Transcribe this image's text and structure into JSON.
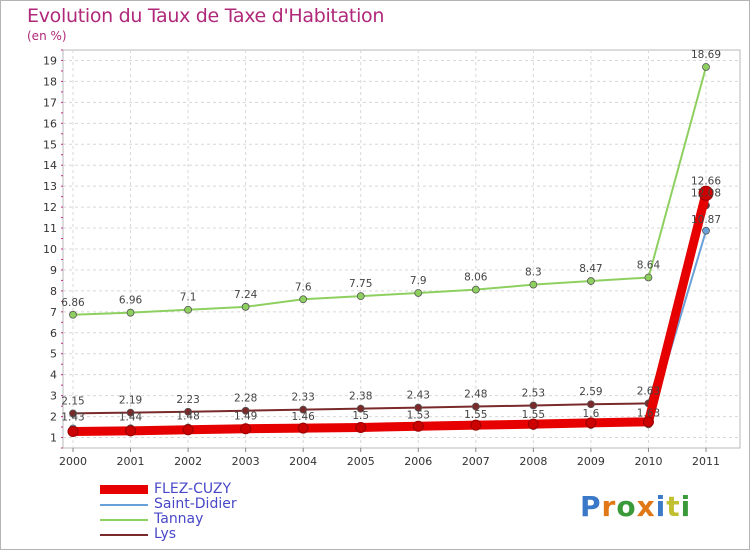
{
  "chart_data": {
    "type": "line",
    "title": "Evolution du Taux de Taxe d'Habitation",
    "subtitle": "(en %)",
    "xlabel": "",
    "ylabel": "",
    "categories": [
      "2000",
      "2001",
      "2002",
      "2003",
      "2004",
      "2005",
      "2006",
      "2007",
      "2008",
      "2009",
      "2010",
      "2011"
    ],
    "ylim": [
      0.5,
      19.5
    ],
    "yticks": [
      "1",
      "2",
      "3",
      "4",
      "5",
      "6",
      "7",
      "8",
      "9",
      "10",
      "11",
      "12",
      "13",
      "14",
      "15",
      "16",
      "17",
      "18",
      "19"
    ],
    "series": [
      {
        "name": "FLEZ-CUZY",
        "color": "#e60000",
        "values": [
          1.29,
          1.32,
          1.37,
          1.42,
          1.45,
          1.48,
          1.54,
          1.59,
          1.64,
          1.7,
          1.75,
          12.66
        ],
        "labels": [
          "",
          "",
          "",
          "",
          "",
          "",
          "",
          "",
          "",
          "",
          "",
          "12.66"
        ]
      },
      {
        "name": "Saint-Didier",
        "color": "#6aa0d8",
        "values": [
          1.43,
          1.44,
          1.48,
          1.49,
          1.46,
          1.5,
          1.53,
          1.55,
          1.55,
          1.6,
          1.63,
          10.87
        ],
        "labels": [
          "1.43",
          "1.44",
          "1.48",
          "1.49",
          "1.46",
          "1.5",
          "1.53",
          "1.55",
          "1.55",
          "1.6",
          "1.63",
          "10.87"
        ]
      },
      {
        "name": "Tannay",
        "color": "#8ed060",
        "values": [
          6.86,
          6.96,
          7.1,
          7.24,
          7.6,
          7.75,
          7.9,
          8.06,
          8.3,
          8.47,
          8.64,
          18.69
        ],
        "labels": [
          "6.86",
          "6.96",
          "7.1",
          "7.24",
          "7.6",
          "7.75",
          "7.9",
          "8.06",
          "8.3",
          "8.47",
          "8.64",
          "18.69"
        ]
      },
      {
        "name": "Lys",
        "color": "#7a2a2a",
        "values": [
          2.15,
          2.19,
          2.23,
          2.28,
          2.33,
          2.38,
          2.43,
          2.48,
          2.53,
          2.59,
          2.63,
          12.08
        ],
        "labels": [
          "2.15",
          "2.19",
          "2.23",
          "2.28",
          "2.33",
          "2.38",
          "2.43",
          "2.48",
          "2.53",
          "2.59",
          "2.63",
          "12.08"
        ]
      }
    ]
  },
  "legend": {
    "items": [
      {
        "name": "FLEZ-CUZY",
        "color": "#e60000",
        "width": 9
      },
      {
        "name": "Saint-Didier",
        "color": "#6aa0d8",
        "width": 2
      },
      {
        "name": "Tannay",
        "color": "#8ed060",
        "width": 2
      },
      {
        "name": "Lys",
        "color": "#7a2a2a",
        "width": 2
      }
    ]
  },
  "brand": {
    "letters": [
      "P",
      "r",
      "o",
      "x",
      "i",
      "t",
      "i"
    ],
    "colors": [
      "#3a78c8",
      "#e07818",
      "#3a9a3a",
      "#e07818",
      "#3a78c8",
      "#c0c030",
      "#3a9a3a"
    ]
  }
}
